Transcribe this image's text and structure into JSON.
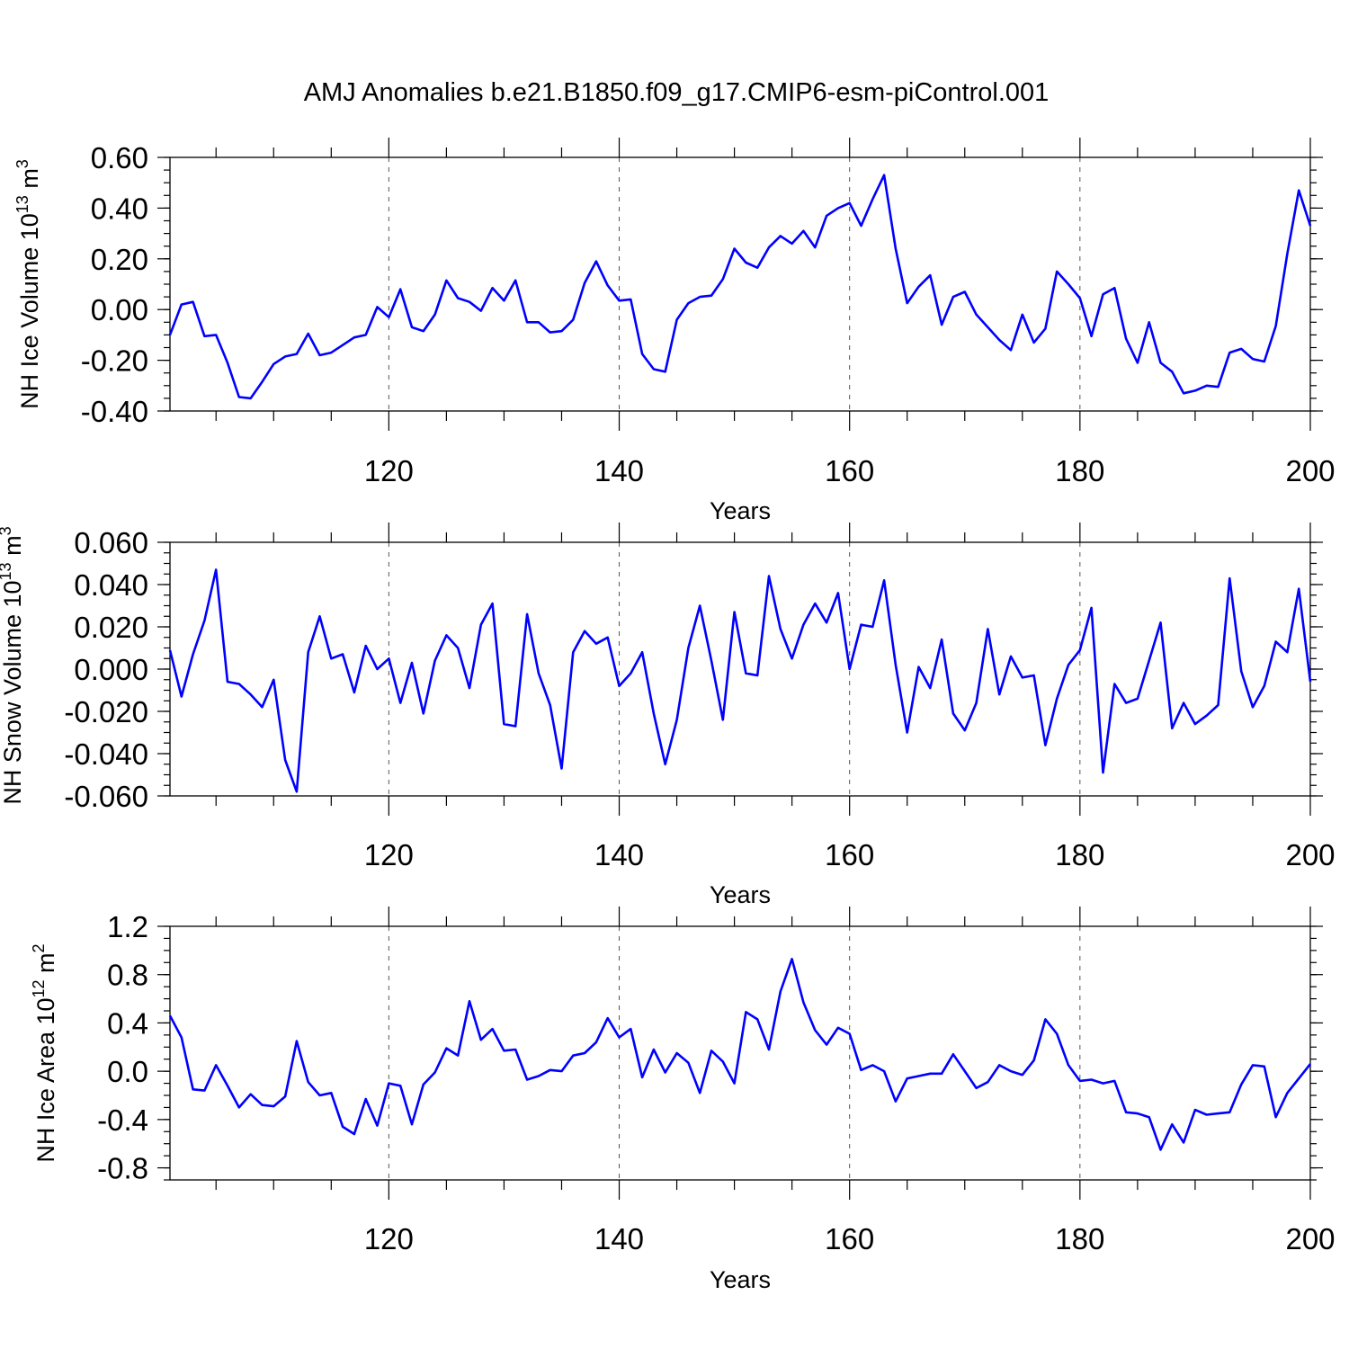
{
  "title": "AMJ Anomalies b.e21.B1850.f09_g17.CMIP6-esm-piControl.001",
  "colors": {
    "line": "#0000ff",
    "grid": "#555555",
    "axis": "#000000"
  },
  "chart_data": [
    {
      "type": "line",
      "ylabel": {
        "base": "NH Ice Volume 10",
        "exp": "13",
        "unit": " m",
        "unit_exp": "3"
      },
      "xlabel": "Years",
      "xlim": [
        101,
        200
      ],
      "ylim": [
        -0.4,
        0.6
      ],
      "yticks": [
        "0.60",
        "0.40",
        "0.20",
        "0.00",
        "-0.20",
        "-0.40"
      ],
      "ytick_values": [
        0.6,
        0.4,
        0.2,
        0.0,
        -0.2,
        -0.4
      ],
      "y_minor_step": 0.05,
      "xticks": [
        "120",
        "140",
        "160",
        "180",
        "200"
      ],
      "xtick_values": [
        120,
        140,
        160,
        180,
        200
      ],
      "grid": "vertical dashed at major x ticks",
      "x": [
        101,
        102,
        103,
        104,
        105,
        106,
        107,
        108,
        109,
        110,
        111,
        112,
        113,
        114,
        115,
        116,
        117,
        118,
        119,
        120,
        121,
        122,
        123,
        124,
        125,
        126,
        127,
        128,
        129,
        130,
        131,
        132,
        133,
        134,
        135,
        136,
        137,
        138,
        139,
        140,
        141,
        142,
        143,
        144,
        145,
        146,
        147,
        148,
        149,
        150,
        151,
        152,
        153,
        154,
        155,
        156,
        157,
        158,
        159,
        160,
        161,
        162,
        163,
        164,
        165,
        166,
        167,
        168,
        169,
        170,
        171,
        172,
        173,
        174,
        175,
        176,
        177,
        178,
        179,
        180,
        181,
        182,
        183,
        184,
        185,
        186,
        187,
        188,
        189,
        190,
        191,
        192,
        193,
        194,
        195,
        196,
        197,
        198,
        199,
        200
      ],
      "values": [
        -0.1,
        0.02,
        0.03,
        -0.105,
        -0.1,
        -0.21,
        -0.345,
        -0.35,
        -0.285,
        -0.215,
        -0.185,
        -0.175,
        -0.095,
        -0.18,
        -0.17,
        -0.14,
        -0.11,
        -0.1,
        0.01,
        -0.03,
        0.08,
        -0.07,
        -0.085,
        -0.02,
        0.115,
        0.045,
        0.03,
        -0.005,
        0.085,
        0.035,
        0.115,
        -0.05,
        -0.05,
        -0.09,
        -0.085,
        -0.04,
        0.105,
        0.19,
        0.095,
        0.035,
        0.04,
        -0.175,
        -0.235,
        -0.245,
        -0.04,
        0.025,
        0.05,
        0.055,
        0.12,
        0.24,
        0.185,
        0.165,
        0.245,
        0.29,
        0.26,
        0.31,
        0.245,
        0.37,
        0.4,
        0.42,
        0.33,
        0.435,
        0.53,
        0.24,
        0.025,
        0.09,
        0.135,
        -0.06,
        0.05,
        0.07,
        -0.02,
        -0.07,
        -0.12,
        -0.16,
        -0.02,
        -0.13,
        -0.075,
        0.15,
        0.1,
        0.045,
        -0.105,
        0.06,
        0.085,
        -0.115,
        -0.21,
        -0.05,
        -0.21,
        -0.245,
        -0.33,
        -0.32,
        -0.3,
        -0.305,
        -0.17,
        -0.155,
        -0.195,
        -0.205,
        -0.065,
        0.22,
        0.47,
        0.33
      ]
    },
    {
      "type": "line",
      "ylabel": {
        "base": "NH Snow Volume 10",
        "exp": "13",
        "unit": " m",
        "unit_exp": "3"
      },
      "xlabel": "Years",
      "xlim": [
        101,
        200
      ],
      "ylim": [
        -0.06,
        0.06
      ],
      "yticks": [
        "0.060",
        "0.040",
        "0.020",
        "0.000",
        "-0.020",
        "-0.040",
        "-0.060"
      ],
      "ytick_values": [
        0.06,
        0.04,
        0.02,
        0.0,
        -0.02,
        -0.04,
        -0.06
      ],
      "y_minor_step": 0.005,
      "xticks": [
        "120",
        "140",
        "160",
        "180",
        "200"
      ],
      "xtick_values": [
        120,
        140,
        160,
        180,
        200
      ],
      "grid": "vertical dashed at major x ticks",
      "x": [
        101,
        102,
        103,
        104,
        105,
        106,
        107,
        108,
        109,
        110,
        111,
        112,
        113,
        114,
        115,
        116,
        117,
        118,
        119,
        120,
        121,
        122,
        123,
        124,
        125,
        126,
        127,
        128,
        129,
        130,
        131,
        132,
        133,
        134,
        135,
        136,
        137,
        138,
        139,
        140,
        141,
        142,
        143,
        144,
        145,
        146,
        147,
        148,
        149,
        150,
        151,
        152,
        153,
        154,
        155,
        156,
        157,
        158,
        159,
        160,
        161,
        162,
        163,
        164,
        165,
        166,
        167,
        168,
        169,
        170,
        171,
        172,
        173,
        174,
        175,
        176,
        177,
        178,
        179,
        180,
        181,
        182,
        183,
        184,
        185,
        186,
        187,
        188,
        189,
        190,
        191,
        192,
        193,
        194,
        195,
        196,
        197,
        198,
        199,
        200
      ],
      "values": [
        0.009,
        -0.013,
        0.007,
        0.023,
        0.047,
        -0.006,
        -0.007,
        -0.012,
        -0.018,
        -0.005,
        -0.043,
        -0.058,
        0.008,
        0.025,
        0.005,
        0.007,
        -0.011,
        0.011,
        0.0,
        0.005,
        -0.016,
        0.003,
        -0.021,
        0.004,
        0.016,
        0.01,
        -0.009,
        0.021,
        0.031,
        -0.026,
        -0.027,
        0.026,
        -0.002,
        -0.017,
        -0.047,
        0.008,
        0.018,
        0.012,
        0.015,
        -0.008,
        -0.002,
        0.008,
        -0.021,
        -0.045,
        -0.024,
        0.01,
        0.03,
        0.004,
        -0.024,
        0.027,
        -0.002,
        -0.003,
        0.044,
        0.019,
        0.005,
        0.021,
        0.031,
        0.022,
        0.036,
        0.0,
        0.021,
        0.02,
        0.042,
        0.002,
        -0.03,
        0.001,
        -0.009,
        0.014,
        -0.021,
        -0.029,
        -0.016,
        0.019,
        -0.012,
        0.006,
        -0.004,
        -0.003,
        -0.036,
        -0.014,
        0.002,
        0.009,
        0.029,
        -0.049,
        -0.007,
        -0.016,
        -0.014,
        0.004,
        0.022,
        -0.028,
        -0.016,
        -0.026,
        -0.022,
        -0.017,
        0.043,
        -0.001,
        -0.018,
        -0.008,
        0.013,
        0.008,
        0.038,
        -0.006
      ]
    },
    {
      "type": "line",
      "ylabel": {
        "base": "NH Ice Area 10",
        "exp": "12",
        "unit": " m",
        "unit_exp": "2"
      },
      "xlabel": "Years",
      "xlim": [
        101,
        200
      ],
      "ylim": [
        -0.9,
        1.2
      ],
      "yticks": [
        "1.2",
        "0.8",
        "0.4",
        "0.0",
        "-0.4",
        "-0.8"
      ],
      "ytick_values": [
        1.2,
        0.8,
        0.4,
        0.0,
        -0.4,
        -0.8
      ],
      "y_minor_step": 0.1,
      "xticks": [
        "120",
        "140",
        "160",
        "180",
        "200"
      ],
      "xtick_values": [
        120,
        140,
        160,
        180,
        200
      ],
      "grid": "vertical dashed at major x ticks",
      "x": [
        101,
        102,
        103,
        104,
        105,
        106,
        107,
        108,
        109,
        110,
        111,
        112,
        113,
        114,
        115,
        116,
        117,
        118,
        119,
        120,
        121,
        122,
        123,
        124,
        125,
        126,
        127,
        128,
        129,
        130,
        131,
        132,
        133,
        134,
        135,
        136,
        137,
        138,
        139,
        140,
        141,
        142,
        143,
        144,
        145,
        146,
        147,
        148,
        149,
        150,
        151,
        152,
        153,
        154,
        155,
        156,
        157,
        158,
        159,
        160,
        161,
        162,
        163,
        164,
        165,
        166,
        167,
        168,
        169,
        170,
        171,
        172,
        173,
        174,
        175,
        176,
        177,
        178,
        179,
        180,
        181,
        182,
        183,
        184,
        185,
        186,
        187,
        188,
        189,
        190,
        191,
        192,
        193,
        194,
        195,
        196,
        197,
        198,
        199,
        200
      ],
      "values": [
        0.46,
        0.28,
        -0.15,
        -0.16,
        0.05,
        -0.12,
        -0.3,
        -0.19,
        -0.28,
        -0.29,
        -0.21,
        0.25,
        -0.09,
        -0.2,
        -0.18,
        -0.46,
        -0.52,
        -0.23,
        -0.45,
        -0.1,
        -0.12,
        -0.44,
        -0.11,
        -0.01,
        0.19,
        0.13,
        0.58,
        0.26,
        0.35,
        0.17,
        0.18,
        -0.07,
        -0.04,
        0.01,
        0.0,
        0.13,
        0.15,
        0.24,
        0.44,
        0.28,
        0.35,
        -0.05,
        0.18,
        -0.01,
        0.15,
        0.07,
        -0.18,
        0.17,
        0.08,
        -0.1,
        0.49,
        0.43,
        0.18,
        0.66,
        0.93,
        0.57,
        0.34,
        0.22,
        0.36,
        0.31,
        0.01,
        0.05,
        0.0,
        -0.25,
        -0.06,
        -0.04,
        -0.02,
        -0.02,
        0.14,
        0.0,
        -0.14,
        -0.09,
        0.05,
        0.0,
        -0.03,
        0.09,
        0.43,
        0.31,
        0.05,
        -0.08,
        -0.07,
        -0.1,
        -0.08,
        -0.34,
        -0.35,
        -0.38,
        -0.65,
        -0.44,
        -0.59,
        -0.32,
        -0.36,
        -0.35,
        -0.34,
        -0.11,
        0.05,
        0.04,
        -0.38,
        -0.18,
        -0.06,
        0.06
      ]
    }
  ]
}
